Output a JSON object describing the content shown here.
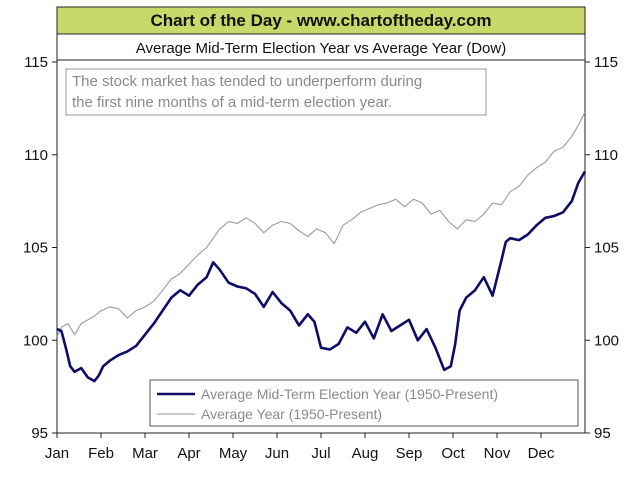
{
  "banner": {
    "title": "Chart of the Day - www.chartoftheday.com",
    "background": "#c8d96a"
  },
  "chart_data": {
    "type": "line",
    "title": "Average Mid-Term Election Year vs Average Year (Dow)",
    "annotation": [
      "The stock market has tended to underperform during",
      "the first nine months of a mid-term election year."
    ],
    "xlabel": "",
    "ylabel": "",
    "x_tick_labels": [
      "Jan",
      "Feb",
      "Mar",
      "Apr",
      "May",
      "Jun",
      "Jul",
      "Aug",
      "Sep",
      "Oct",
      "Nov",
      "Dec"
    ],
    "y_ticks": [
      95,
      100,
      105,
      110,
      115
    ],
    "ylim": [
      95,
      115
    ],
    "xlim": [
      0,
      12
    ],
    "grid": false,
    "y_axis_both_sides": true,
    "legend_position": "bottom-right",
    "x_unit": "months since Jan 1",
    "series": [
      {
        "name": "Average Mid-Term Election Year (1950-Present)",
        "color": "#0d0d66",
        "x": [
          0,
          0.1,
          0.2,
          0.3,
          0.4,
          0.55,
          0.7,
          0.85,
          0.95,
          1.05,
          1.2,
          1.4,
          1.6,
          1.8,
          2.0,
          2.2,
          2.4,
          2.6,
          2.8,
          3.0,
          3.2,
          3.4,
          3.55,
          3.7,
          3.9,
          4.1,
          4.3,
          4.5,
          4.7,
          4.9,
          5.1,
          5.3,
          5.5,
          5.7,
          5.85,
          6.0,
          6.2,
          6.4,
          6.6,
          6.8,
          7.0,
          7.2,
          7.4,
          7.6,
          7.8,
          8.0,
          8.2,
          8.4,
          8.6,
          8.8,
          8.95,
          9.05,
          9.15,
          9.3,
          9.5,
          9.7,
          9.9,
          10.1,
          10.2,
          10.3,
          10.5,
          10.7,
          10.9,
          11.1,
          11.3,
          11.5,
          11.7,
          11.85,
          12.0
        ],
        "values": [
          100.6,
          100.5,
          99.6,
          98.6,
          98.3,
          98.5,
          98.0,
          97.8,
          98.1,
          98.6,
          98.9,
          99.2,
          99.4,
          99.7,
          100.3,
          100.9,
          101.6,
          102.3,
          102.7,
          102.4,
          103.0,
          103.4,
          104.2,
          103.8,
          103.1,
          102.9,
          102.8,
          102.5,
          101.8,
          102.6,
          102.0,
          101.6,
          100.8,
          101.4,
          101.0,
          99.6,
          99.5,
          99.8,
          100.7,
          100.4,
          101.0,
          100.1,
          101.4,
          100.5,
          100.8,
          101.1,
          100.0,
          100.6,
          99.6,
          98.4,
          98.6,
          99.8,
          101.6,
          102.3,
          102.7,
          103.4,
          102.4,
          104.3,
          105.3,
          105.5,
          105.4,
          105.7,
          106.2,
          106.6,
          106.7,
          106.9,
          107.5,
          108.5,
          109.1
        ]
      },
      {
        "name": "Average Year (1950-Present)",
        "color": "#9a9a9a",
        "x": [
          0,
          0.1,
          0.25,
          0.4,
          0.55,
          0.7,
          0.85,
          1.0,
          1.2,
          1.4,
          1.6,
          1.8,
          2.0,
          2.2,
          2.4,
          2.6,
          2.8,
          3.0,
          3.2,
          3.4,
          3.55,
          3.7,
          3.9,
          4.1,
          4.3,
          4.5,
          4.7,
          4.9,
          5.1,
          5.3,
          5.5,
          5.7,
          5.9,
          6.1,
          6.3,
          6.5,
          6.7,
          6.9,
          7.1,
          7.3,
          7.5,
          7.7,
          7.9,
          8.1,
          8.3,
          8.5,
          8.7,
          8.9,
          9.1,
          9.3,
          9.5,
          9.7,
          9.9,
          10.1,
          10.3,
          10.5,
          10.7,
          10.9,
          11.1,
          11.3,
          11.5,
          11.7,
          11.85,
          12.0
        ],
        "values": [
          100.2,
          100.7,
          100.9,
          100.3,
          100.9,
          101.1,
          101.3,
          101.6,
          101.8,
          101.7,
          101.2,
          101.6,
          101.8,
          102.1,
          102.7,
          103.3,
          103.6,
          104.1,
          104.6,
          105.0,
          105.5,
          106.0,
          106.4,
          106.3,
          106.6,
          106.3,
          105.8,
          106.2,
          106.4,
          106.3,
          105.9,
          105.6,
          106.0,
          105.8,
          105.2,
          106.2,
          106.5,
          106.9,
          107.1,
          107.3,
          107.4,
          107.6,
          107.2,
          107.6,
          107.4,
          106.8,
          107.0,
          106.4,
          106.0,
          106.5,
          106.4,
          106.8,
          107.4,
          107.3,
          108.0,
          108.3,
          108.9,
          109.3,
          109.6,
          110.2,
          110.4,
          111.0,
          111.6,
          112.3
        ]
      }
    ]
  }
}
